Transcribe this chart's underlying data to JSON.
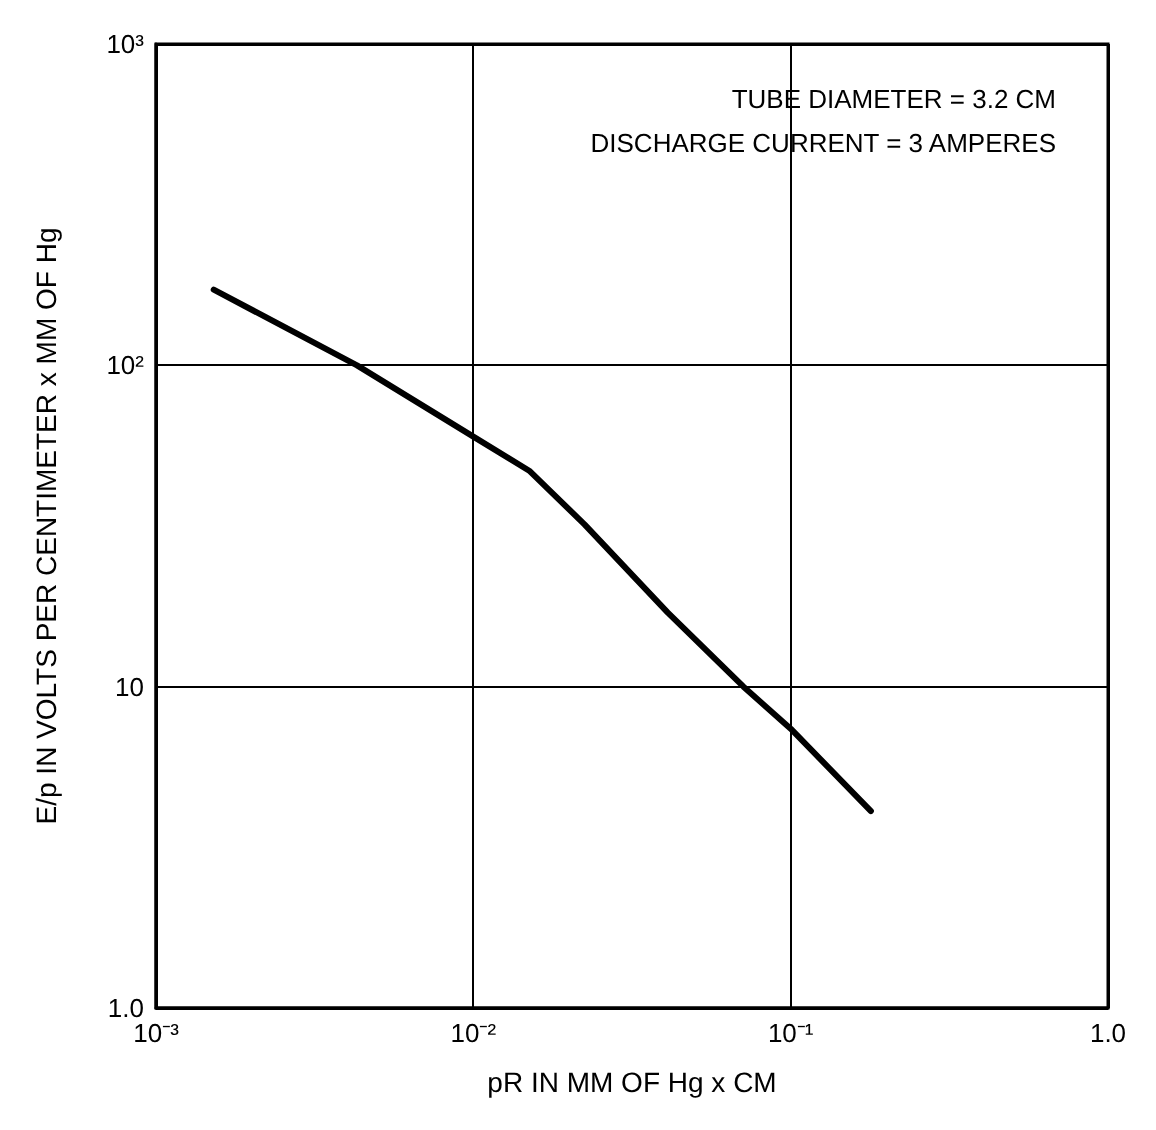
{
  "chart_data": {
    "type": "line",
    "xlabel": "pR IN MM OF Hg x CM",
    "ylabel": "E/p IN VOLTS PER CENTIMETER x MM OF Hg",
    "annotations": [
      "TUBE DIAMETER = 3.2 CM",
      "DISCHARGE CURRENT = 3 AMPERES"
    ],
    "x": [
      0.00152,
      0.0043,
      0.01,
      0.015,
      0.0224,
      0.041,
      0.071,
      0.1,
      0.179
    ],
    "series": [
      {
        "color": "#000000",
        "values": [
          172,
          100,
          60,
          47,
          32,
          17,
          10,
          7.4,
          4.1
        ]
      }
    ],
    "log": "xy",
    "grid": true,
    "marker": "none",
    "line_style": "solid",
    "xlim": [
      0.001,
      1
    ],
    "ylim": [
      1,
      1000
    ],
    "xticks": [
      {
        "value": 0.001,
        "label": "10⁻³"
      },
      {
        "value": 0.01,
        "label": "10⁻²"
      },
      {
        "value": 0.1,
        "label": "10⁻¹"
      },
      {
        "value": 1,
        "label": "1.0"
      }
    ],
    "yticks": [
      {
        "value": 1,
        "label": "1.0"
      },
      {
        "value": 10,
        "label": "10"
      },
      {
        "value": 100,
        "label": "10²"
      },
      {
        "value": 1000,
        "label": "10³"
      }
    ]
  }
}
